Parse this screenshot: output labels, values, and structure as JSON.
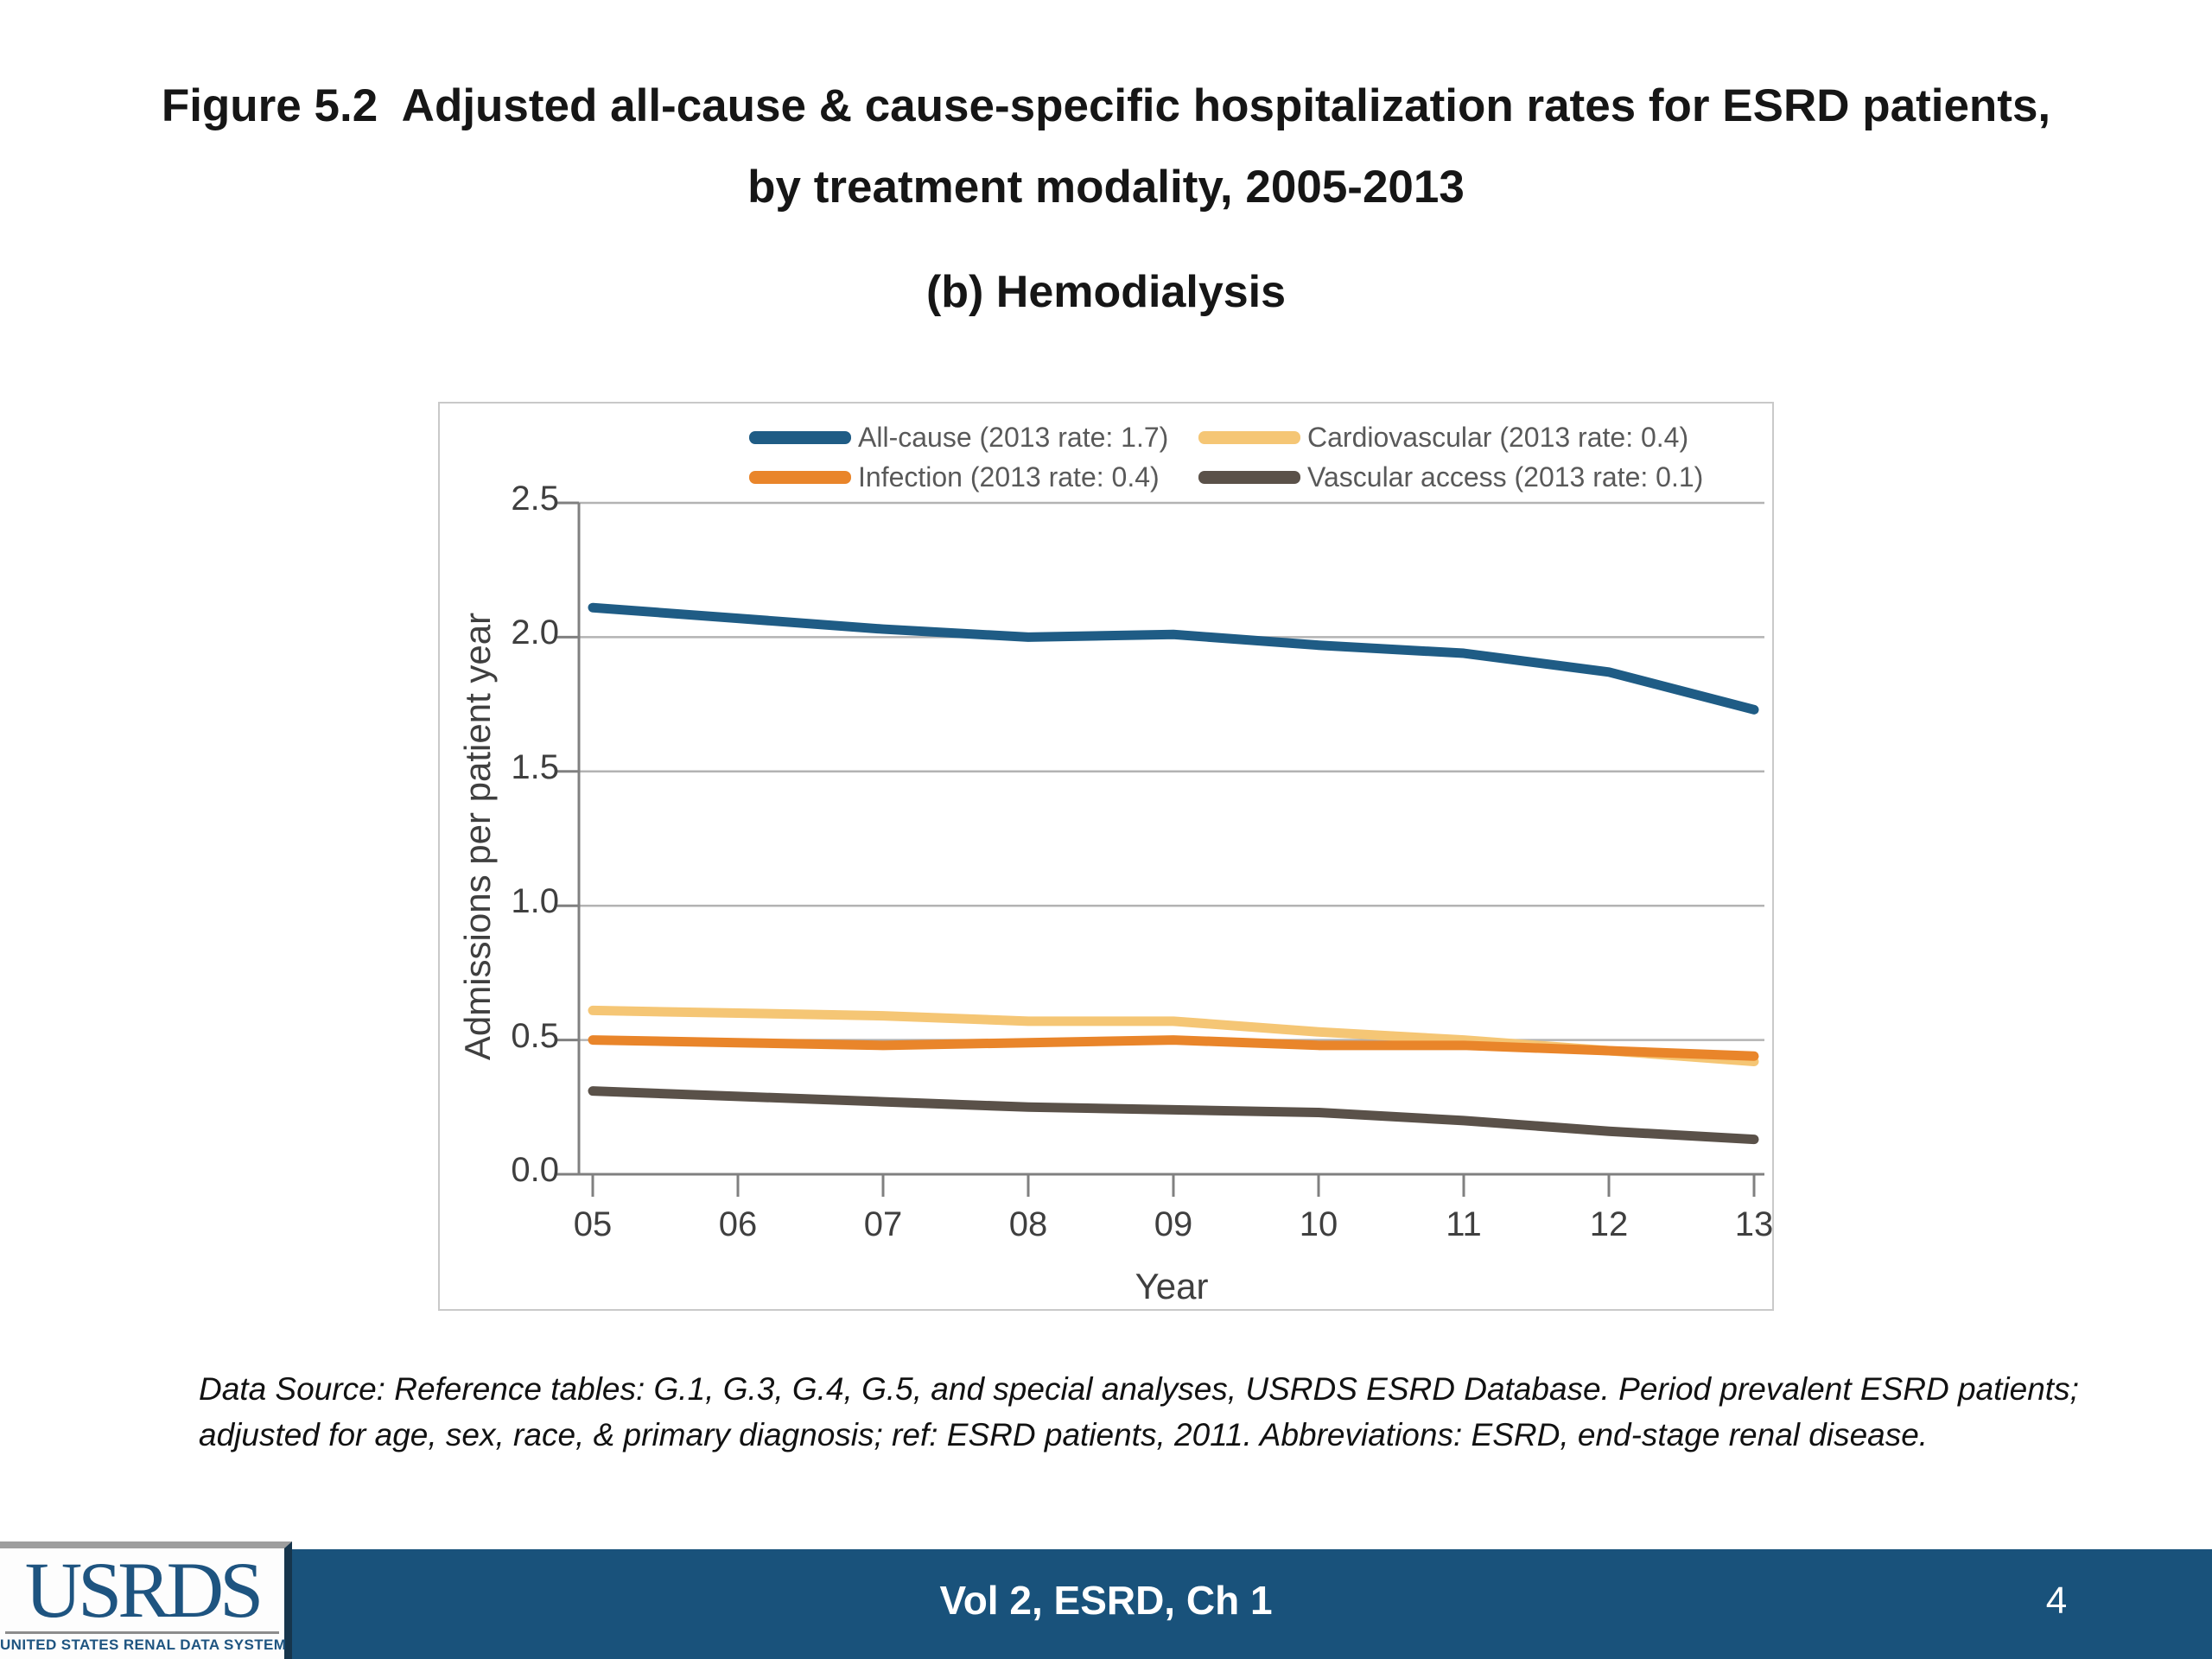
{
  "slide": {
    "title": {
      "line1": "Figure 5.2  Adjusted all-cause & cause-specific hospitalization rates for ESRD patients,",
      "line2": "by treatment modality, 2005-2013",
      "panel": "(b) Hemodialysis"
    },
    "data_source_note": "Data Source: Reference tables: G.1, G.3, G.4, G.5, and special analyses, USRDS ESRD Database. Period prevalent ESRD patients; adjusted for age, sex, race, & primary diagnosis; ref: ESRD patients, 2011. Abbreviations: ESRD, end-stage renal disease.",
    "footer": {
      "center_text": "Vol 2, ESRD, Ch 1",
      "page_number": "4",
      "bar_color": "#19527b"
    },
    "logo": {
      "acronym": "USRDS",
      "full_name": "UNITED STATES RENAL DATA SYSTEM",
      "color": "#1e5480"
    }
  },
  "chart_data": {
    "type": "line",
    "categories": [
      "05",
      "06",
      "07",
      "08",
      "09",
      "10",
      "11",
      "12",
      "13"
    ],
    "series": [
      {
        "name": "All-cause (2013 rate: 1.7)",
        "color": "#1f5c85",
        "values": [
          2.11,
          2.07,
          2.03,
          2.0,
          2.01,
          1.97,
          1.94,
          1.87,
          1.73
        ]
      },
      {
        "name": "Cardiovascular (2013 rate: 0.4)",
        "color": "#f5c675",
        "values": [
          0.61,
          0.6,
          0.59,
          0.57,
          0.57,
          0.53,
          0.5,
          0.46,
          0.42
        ]
      },
      {
        "name": "Infection (2013 rate: 0.4)",
        "color": "#e9852a",
        "values": [
          0.5,
          0.49,
          0.48,
          0.49,
          0.5,
          0.48,
          0.48,
          0.46,
          0.44
        ]
      },
      {
        "name": "Vascular access (2013 rate: 0.1)",
        "color": "#5a5149",
        "values": [
          0.31,
          0.29,
          0.27,
          0.25,
          0.24,
          0.23,
          0.2,
          0.16,
          0.13
        ]
      }
    ],
    "xlabel": "Year",
    "ylabel": "Admissions per patient year",
    "ylim": [
      0,
      2.5
    ],
    "yticks": [
      0,
      0.5,
      1,
      1.5,
      2,
      2.5
    ],
    "grid": "horizontal",
    "legend_position": "top-inside",
    "axis_color": "#808080",
    "gridline_color": "#b3b3b3"
  }
}
